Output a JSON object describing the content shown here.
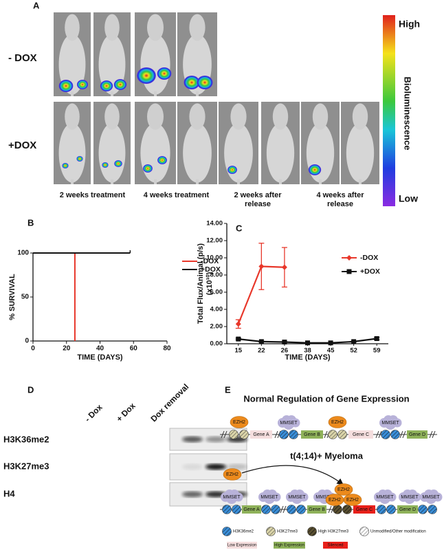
{
  "panel_labels": [
    "A",
    "B",
    "C",
    "D",
    "E"
  ],
  "panel_a": {
    "rows": [
      "- DOX",
      "+DOX"
    ],
    "timepoints": [
      "2 weeks treatment",
      "4 weeks treatment",
      "2 weeks after release",
      "4 weeks after release"
    ],
    "colorbar": {
      "title": "Bioluminescence",
      "high": "High",
      "low": "Low"
    }
  },
  "chart_data": [
    {
      "type": "line",
      "x_label": "TIME (DAYS)",
      "y_label": "% SURVIVAL",
      "xlim": [
        0,
        80
      ],
      "xticks": [
        0,
        20,
        40,
        60,
        80
      ],
      "ylim": [
        0,
        100
      ],
      "yticks": [
        0,
        50,
        100
      ],
      "legend": "right",
      "series": [
        {
          "name": "-DOX",
          "color": "#e8372a",
          "x": [
            0,
            25,
            25
          ],
          "values": [
            100,
            100,
            0
          ]
        },
        {
          "name": "+DOX",
          "color": "#111111",
          "x": [
            0,
            58
          ],
          "values": [
            100,
            100
          ]
        }
      ]
    },
    {
      "type": "line",
      "x_label": "TIME (DAYS)",
      "y_label": [
        "Total Flux/Animal (p/s)",
        "(x10¹⁰)"
      ],
      "categories": [
        "15",
        "22",
        "26",
        "38",
        "45",
        "52",
        "59"
      ],
      "ylim": [
        0,
        14
      ],
      "yticks": [
        {
          "value": 0,
          "label": "0.00"
        },
        {
          "value": 2,
          "label": "2.00"
        },
        {
          "value": 4,
          "label": "4.00"
        },
        {
          "value": 6,
          "label": "6.00"
        },
        {
          "value": 8,
          "label": "8.00"
        },
        {
          "value": 10,
          "label": "10.00"
        },
        {
          "value": 12,
          "label": "12.00"
        },
        {
          "value": 14,
          "label": "14.00"
        }
      ],
      "legend": "upper right",
      "series": [
        {
          "name": "-DOX",
          "color": "#e8372a",
          "marker": "diamond",
          "values": [
            2.3,
            9.0,
            8.9,
            null,
            null,
            null,
            null
          ],
          "errors": [
            0.5,
            2.7,
            2.3,
            null,
            null,
            null,
            null
          ]
        },
        {
          "name": "+DOX",
          "color": "#111111",
          "marker": "square",
          "values": [
            0.55,
            0.25,
            0.2,
            0.1,
            0.1,
            0.25,
            0.6
          ],
          "errors": [
            0.1,
            0.05,
            0.05,
            0.03,
            0.03,
            0.05,
            0.15
          ]
        }
      ]
    }
  ],
  "panel_d": {
    "columns": [
      "- Dox",
      "+ Dox",
      "Dox removal"
    ],
    "rows": [
      "H3K36me2",
      "H3K27me3",
      "H4"
    ]
  },
  "panel_e": {
    "title": "Normal Regulation of Gene Expression",
    "normal": {
      "ezh2": [
        "EZH2",
        "EZH2"
      ],
      "mmset": [
        "MMSET",
        "MMSET"
      ],
      "genes": [
        "Gene A",
        "Gene B",
        "Gene C",
        "Gene D"
      ]
    },
    "myeloma": {
      "title": "t(4;14)+ Myeloma",
      "ezh2": [
        "EZH2",
        "EZH2",
        "EZH2",
        "EZH2"
      ],
      "mmset": [
        "MMSET",
        "MMSET",
        "MMSET",
        "MMSET",
        "MMSET",
        "MMSET",
        "MMSET"
      ],
      "genes": [
        "Gene A",
        "Gene B",
        "Gene C",
        "Gene D"
      ]
    },
    "mark_legend": [
      "H3K36me2",
      "H3K27me3",
      "High H3K27me3",
      "Unmodified/Other modification"
    ],
    "expression_legend": [
      "Low Expression",
      "High Expression",
      "Silenced"
    ]
  }
}
